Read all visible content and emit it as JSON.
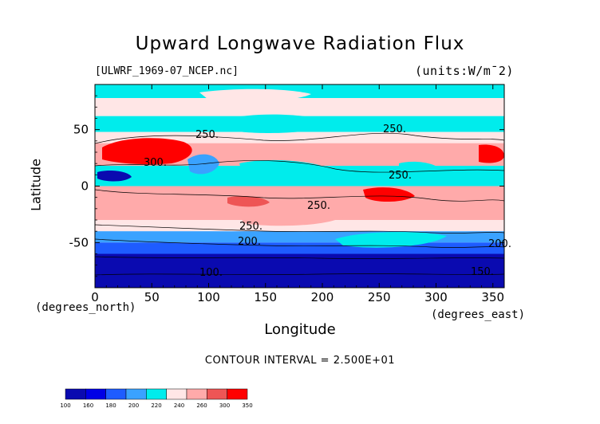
{
  "chart_data": {
    "type": "heatmap",
    "title": "Upward Longwave Radiation Flux",
    "file_label": "[ULWRF_1969-07_NCEP.nc]",
    "units_label": "(units:W/m^2)",
    "xlabel": "Longitude",
    "ylabel": "Latitude",
    "x_comment": "(degrees_east)",
    "y_comment": "(degrees_north)",
    "xlim": [
      0,
      360
    ],
    "ylim": [
      -90,
      90
    ],
    "x_ticks": [
      0,
      50,
      100,
      150,
      200,
      250,
      300,
      350
    ],
    "y_ticks": [
      -50,
      0,
      50
    ],
    "contour_interval_text": "CONTOUR INTERVAL = 2.500E+01",
    "contour_labels": [
      "250.",
      "300.",
      "250.",
      "250.",
      "250.",
      "250.",
      "200.",
      "200.",
      "150.",
      "100."
    ],
    "colorbar_levels": [
      100,
      160,
      180,
      200,
      220,
      240,
      260,
      300,
      350
    ],
    "colorbar_colors": [
      "#0a0ab0",
      "#0000e6",
      "#1e5cff",
      "#3aa2ff",
      "#00ecec",
      "#ffe6e6",
      "#ffaaaa",
      "#ee5555",
      "#ff0000"
    ],
    "zonal_bands": [
      {
        "lat_from": 90,
        "lat_to": 78,
        "value": 230
      },
      {
        "lat_from": 78,
        "lat_to": 62,
        "value": 245
      },
      {
        "lat_from": 62,
        "lat_to": 48,
        "value": 235
      },
      {
        "lat_from": 48,
        "lat_to": 38,
        "value": 245
      },
      {
        "lat_from": 38,
        "lat_to": 18,
        "value": 270
      },
      {
        "lat_from": 18,
        "lat_to": 0,
        "value": 225
      },
      {
        "lat_from": 0,
        "lat_to": -30,
        "value": 280
      },
      {
        "lat_from": -30,
        "lat_to": -40,
        "value": 240
      },
      {
        "lat_from": -40,
        "lat_to": -50,
        "value": 210
      },
      {
        "lat_from": -50,
        "lat_to": -60,
        "value": 195
      },
      {
        "lat_from": -60,
        "lat_to": -90,
        "value": 150
      }
    ]
  },
  "labels": {
    "title": "Upward Longwave Radiation Flux",
    "file": "[ULWRF_1969-07_NCEP.nc]",
    "units": "(units:W/m¯2)",
    "xlabel": "Longitude",
    "ylabel": "Latitude",
    "x_comment": "(degrees_east)",
    "y_comment": "(degrees_north)",
    "interval": "CONTOUR INTERVAL = 2.500E+01"
  }
}
